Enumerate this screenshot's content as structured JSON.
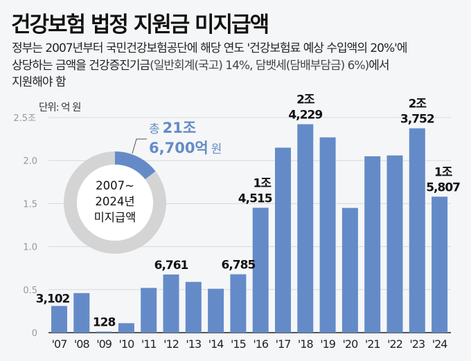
{
  "title": "건강보험 법정 지원금 미지급액",
  "subtitle": {
    "line1": "정부는 2007년부터 국민건강보험공단에 해당 연도 '건강보험료 예상 수입액의 20%'에",
    "line2a": "상당하는 금액을 건강증진기금",
    "line2b": "(일반회계(국고) 14%, 담뱃세(담배부담금) 6%)",
    "line2c": "에서",
    "line3": "지원해야 함"
  },
  "unit_label": "단위: 억 원",
  "donut": {
    "center_lines": [
      "2007~",
      "2024년",
      "미지급액"
    ],
    "total_prefix": "총",
    "total_line1": "21조",
    "total_line2": "6,700억",
    "total_suffix": "원",
    "share_of_ring": 0.145,
    "colors": {
      "highlight": "#648bc8",
      "ring": "#d4d4d4"
    }
  },
  "chart_data": {
    "type": "bar",
    "title": "건강보험 법정 지원금 미지급액",
    "ylabel": "억 원",
    "ylim": [
      0,
      25000
    ],
    "y_ticks": [
      {
        "value": 0,
        "label": "0"
      },
      {
        "value": 5000,
        "label": "0.5"
      },
      {
        "value": 10000,
        "label": "1.0"
      },
      {
        "value": 15000,
        "label": "1.5"
      },
      {
        "value": 20000,
        "label": "2.0"
      },
      {
        "value": 25000,
        "label": "2.5조"
      }
    ],
    "grid": true,
    "categories": [
      "'07",
      "'08",
      "'09",
      "'10",
      "'11",
      "'12",
      "'13",
      "'14",
      "'15",
      "'16",
      "'17",
      "'18",
      "'19",
      "'20",
      "'21",
      "'22",
      "'23",
      "'24"
    ],
    "values": [
      3102,
      4600,
      128,
      1100,
      5200,
      6761,
      5900,
      5100,
      6785,
      14515,
      21500,
      24229,
      22700,
      14500,
      20500,
      20600,
      23752,
      15807
    ],
    "data_labels": [
      [
        "3,102"
      ],
      null,
      [
        "128"
      ],
      null,
      null,
      [
        "6,761"
      ],
      null,
      null,
      [
        "6,785"
      ],
      [
        "1조",
        "4,515"
      ],
      null,
      [
        "2조",
        "4,229"
      ],
      null,
      null,
      null,
      null,
      [
        "2조",
        "3,752"
      ],
      [
        "1조",
        "5,807"
      ]
    ],
    "bar_color": "#648bc8"
  }
}
